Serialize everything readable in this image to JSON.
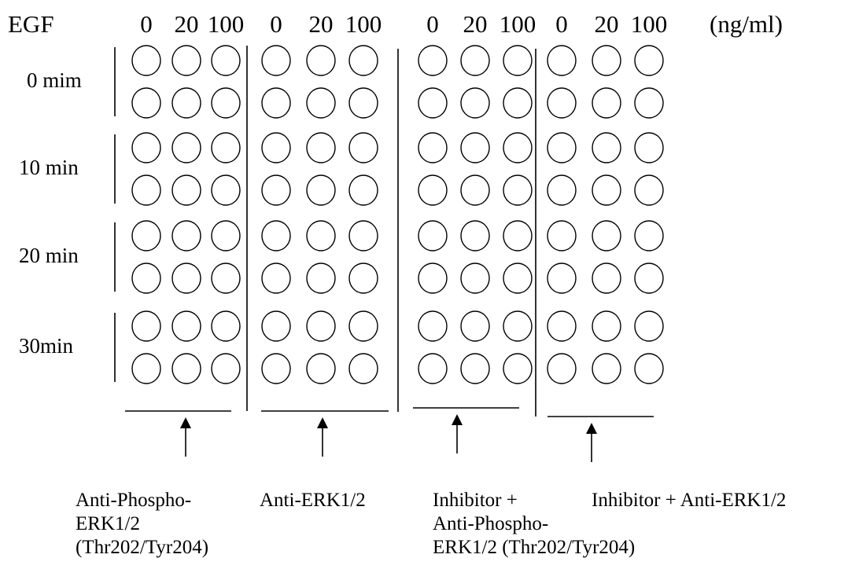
{
  "factor_label": "EGF",
  "unit_label": "(ng/ml)",
  "concentrations": [
    "0",
    "20",
    "100"
  ],
  "timepoints": [
    "0 mim",
    "10 min",
    "20 min",
    "30min"
  ],
  "groups": [
    {
      "caption": [
        "Anti-Phospho-",
        "ERK1/2",
        "(Thr202/Tyr204)"
      ]
    },
    {
      "caption": [
        "Anti-ERK1/2"
      ]
    },
    {
      "caption": [
        "Inhibitor +",
        "Anti-Phospho-",
        "ERK1/2 (Thr202/Tyr204)"
      ]
    },
    {
      "caption": [
        "Inhibitor + Anti-ERK1/2"
      ]
    }
  ],
  "wells_per_timepoint": 2
}
